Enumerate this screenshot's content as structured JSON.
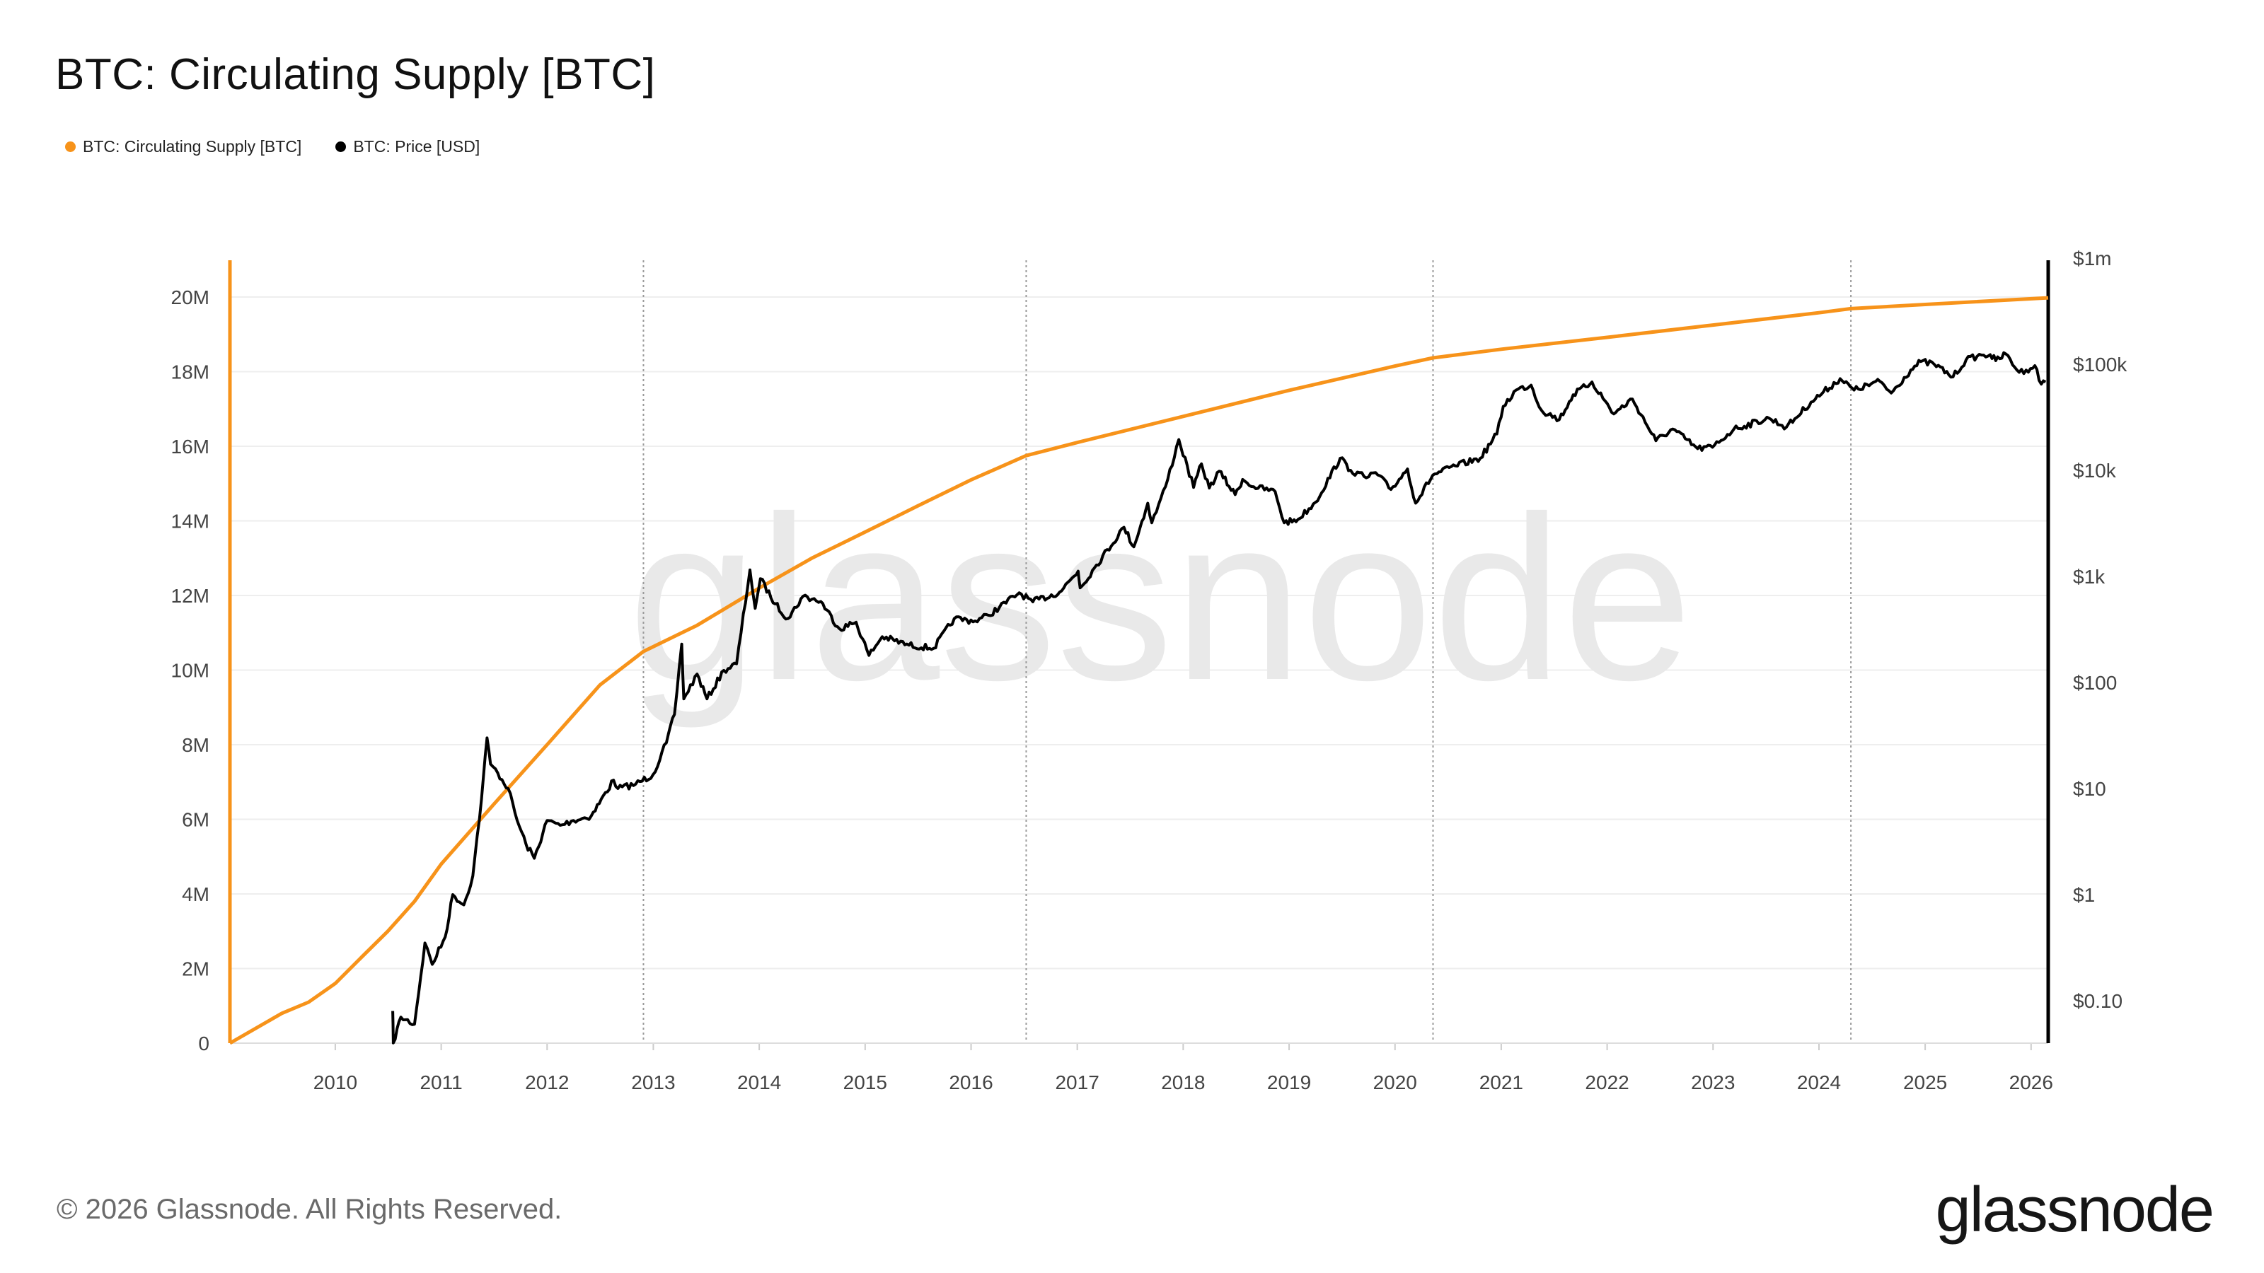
{
  "page": {
    "title": "BTC: Circulating Supply [BTC]",
    "footer": "© 2026 Glassnode. All Rights Reserved.",
    "logo_text": "glassnode",
    "watermark_text": "glassnode"
  },
  "colors": {
    "supply": "#f7931a",
    "price": "#000000",
    "grid": "#eeeeee",
    "axis_text": "#444444"
  },
  "chart_data": {
    "type": "line",
    "title": "BTC: Circulating Supply [BTC]",
    "legend_position": "top-left",
    "grid": true,
    "xlim": [
      "2009-01-03",
      "2026-03-01"
    ],
    "x_ticks": [
      "2010",
      "2011",
      "2012",
      "2013",
      "2014",
      "2015",
      "2016",
      "2017",
      "2018",
      "2019",
      "2020",
      "2021",
      "2022",
      "2023",
      "2024",
      "2025",
      "2026"
    ],
    "y_left": {
      "label": "",
      "range": [
        0,
        21000000
      ],
      "ticks": [
        0,
        2000000,
        4000000,
        6000000,
        8000000,
        10000000,
        12000000,
        14000000,
        16000000,
        18000000,
        20000000
      ],
      "tick_labels": [
        "0",
        "2M",
        "4M",
        "6M",
        "8M",
        "10M",
        "12M",
        "14M",
        "16M",
        "18M",
        "20M"
      ]
    },
    "y_right": {
      "label": "",
      "scale": "log",
      "range": [
        0.03,
        1000000
      ],
      "ticks": [
        0.1,
        1,
        10,
        100,
        1000,
        10000,
        100000,
        1000000
      ],
      "tick_labels": [
        "$0.10",
        "$1",
        "$10",
        "$100",
        "$1k",
        "$10k",
        "$100k",
        "$1m"
      ]
    },
    "halving_dates": [
      "2012-11-28",
      "2016-07-09",
      "2020-05-11",
      "2024-04-20"
    ],
    "series": [
      {
        "name": "BTC: Circulating Supply [BTC]",
        "axis": "left",
        "color": "#f7931a",
        "points": [
          [
            "2009-01-03",
            0
          ],
          [
            "2009-07-01",
            800000
          ],
          [
            "2009-10-01",
            1100000
          ],
          [
            "2010-01-01",
            1600000
          ],
          [
            "2010-04-01",
            2300000
          ],
          [
            "2010-07-01",
            3000000
          ],
          [
            "2010-10-01",
            3800000
          ],
          [
            "2011-01-01",
            4800000
          ],
          [
            "2011-07-01",
            6400000
          ],
          [
            "2012-01-01",
            8000000
          ],
          [
            "2012-07-01",
            9600000
          ],
          [
            "2012-11-28",
            10500000
          ],
          [
            "2013-06-01",
            11200000
          ],
          [
            "2014-01-01",
            12200000
          ],
          [
            "2014-07-01",
            13000000
          ],
          [
            "2015-01-01",
            13700000
          ],
          [
            "2015-07-01",
            14400000
          ],
          [
            "2016-01-01",
            15100000
          ],
          [
            "2016-07-09",
            15750000
          ],
          [
            "2017-01-01",
            16100000
          ],
          [
            "2018-01-01",
            16800000
          ],
          [
            "2019-01-01",
            17500000
          ],
          [
            "2020-01-01",
            18150000
          ],
          [
            "2020-05-11",
            18370000
          ],
          [
            "2021-01-01",
            18600000
          ],
          [
            "2022-01-01",
            18920000
          ],
          [
            "2023-01-01",
            19250000
          ],
          [
            "2024-01-01",
            19580000
          ],
          [
            "2024-04-20",
            19690000
          ],
          [
            "2025-01-01",
            19800000
          ],
          [
            "2026-03-01",
            19980000
          ]
        ]
      },
      {
        "name": "BTC: Price [USD]",
        "axis": "right",
        "color": "#000000",
        "points": [
          [
            "2010-07-18",
            0.08
          ],
          [
            "2010-07-20",
            0.04
          ],
          [
            "2010-08-15",
            0.07
          ],
          [
            "2010-10-01",
            0.06
          ],
          [
            "2010-11-06",
            0.35
          ],
          [
            "2010-12-01",
            0.22
          ],
          [
            "2011-01-15",
            0.4
          ],
          [
            "2011-02-10",
            1.0
          ],
          [
            "2011-03-20",
            0.8
          ],
          [
            "2011-04-20",
            1.5
          ],
          [
            "2011-05-20",
            8
          ],
          [
            "2011-06-08",
            30
          ],
          [
            "2011-06-20",
            17
          ],
          [
            "2011-07-15",
            14
          ],
          [
            "2011-08-20",
            10
          ],
          [
            "2011-09-20",
            5
          ],
          [
            "2011-10-20",
            3
          ],
          [
            "2011-11-18",
            2.2
          ],
          [
            "2012-01-01",
            5
          ],
          [
            "2012-02-15",
            4.5
          ],
          [
            "2012-04-01",
            5
          ],
          [
            "2012-06-01",
            5.5
          ],
          [
            "2012-08-17",
            12
          ],
          [
            "2012-09-01",
            10
          ],
          [
            "2012-11-01",
            11
          ],
          [
            "2012-12-31",
            13.5
          ],
          [
            "2013-02-15",
            27
          ],
          [
            "2013-03-15",
            50
          ],
          [
            "2013-04-09",
            230
          ],
          [
            "2013-04-16",
            70
          ],
          [
            "2013-06-01",
            120
          ],
          [
            "2013-07-05",
            70
          ],
          [
            "2013-09-01",
            130
          ],
          [
            "2013-10-15",
            150
          ],
          [
            "2013-11-30",
            1150
          ],
          [
            "2013-12-18",
            500
          ],
          [
            "2014-01-05",
            950
          ],
          [
            "2014-02-25",
            550
          ],
          [
            "2014-04-10",
            400
          ],
          [
            "2014-06-01",
            650
          ],
          [
            "2014-08-01",
            580
          ],
          [
            "2014-10-05",
            320
          ],
          [
            "2014-12-01",
            370
          ],
          [
            "2015-01-14",
            180
          ],
          [
            "2015-03-01",
            270
          ],
          [
            "2015-06-01",
            225
          ],
          [
            "2015-08-25",
            210
          ],
          [
            "2015-11-04",
            400
          ],
          [
            "2016-01-15",
            380
          ],
          [
            "2016-03-01",
            430
          ],
          [
            "2016-06-15",
            700
          ],
          [
            "2016-08-01",
            575
          ],
          [
            "2016-11-01",
            710
          ],
          [
            "2017-01-04",
            1120
          ],
          [
            "2017-01-11",
            780
          ],
          [
            "2017-03-01",
            1200
          ],
          [
            "2017-06-11",
            2900
          ],
          [
            "2017-07-15",
            1900
          ],
          [
            "2017-09-01",
            4900
          ],
          [
            "2017-09-15",
            3200
          ],
          [
            "2017-11-01",
            7000
          ],
          [
            "2017-12-17",
            19500
          ],
          [
            "2018-02-06",
            6900
          ],
          [
            "2018-03-05",
            11500
          ],
          [
            "2018-04-01",
            6800
          ],
          [
            "2018-05-05",
            9800
          ],
          [
            "2018-06-29",
            5900
          ],
          [
            "2018-07-25",
            8200
          ],
          [
            "2018-09-01",
            7000
          ],
          [
            "2018-11-14",
            6300
          ],
          [
            "2018-12-15",
            3200
          ],
          [
            "2019-02-01",
            3450
          ],
          [
            "2019-04-02",
            5000
          ],
          [
            "2019-06-26",
            13000
          ],
          [
            "2019-08-01",
            10000
          ],
          [
            "2019-09-24",
            8500
          ],
          [
            "2019-10-26",
            9500
          ],
          [
            "2019-12-18",
            6600
          ],
          [
            "2020-02-13",
            10300
          ],
          [
            "2020-03-12",
            4900
          ],
          [
            "2020-05-10",
            9000
          ],
          [
            "2020-07-27",
            11000
          ],
          [
            "2020-10-21",
            13000
          ],
          [
            "2020-12-17",
            22000
          ],
          [
            "2021-01-08",
            40000
          ],
          [
            "2021-02-21",
            57000
          ],
          [
            "2021-04-14",
            63500
          ],
          [
            "2021-05-19",
            37000
          ],
          [
            "2021-07-20",
            30000
          ],
          [
            "2021-09-06",
            51500
          ],
          [
            "2021-11-10",
            68000
          ],
          [
            "2022-01-24",
            34000
          ],
          [
            "2022-03-29",
            47000
          ],
          [
            "2022-06-18",
            19000
          ],
          [
            "2022-08-15",
            24500
          ],
          [
            "2022-11-09",
            16000
          ],
          [
            "2022-12-30",
            16500
          ],
          [
            "2023-03-14",
            24500
          ],
          [
            "2023-07-13",
            31000
          ],
          [
            "2023-09-11",
            25500
          ],
          [
            "2023-12-05",
            44000
          ],
          [
            "2024-03-14",
            73000
          ],
          [
            "2024-05-01",
            57000
          ],
          [
            "2024-07-29",
            69000
          ],
          [
            "2024-09-06",
            53500
          ],
          [
            "2024-11-12",
            88000
          ],
          [
            "2024-12-17",
            106000
          ],
          [
            "2025-02-01",
            100000
          ],
          [
            "2025-04-07",
            76000
          ],
          [
            "2025-05-22",
            110000
          ],
          [
            "2025-07-14",
            122000
          ],
          [
            "2025-08-13",
            123000
          ],
          [
            "2025-09-01",
            108000
          ],
          [
            "2025-10-06",
            125000
          ],
          [
            "2025-11-21",
            84000
          ],
          [
            "2025-12-15",
            88000
          ],
          [
            "2026-01-14",
            97000
          ],
          [
            "2026-02-05",
            65000
          ],
          [
            "2026-02-20",
            68000
          ]
        ]
      }
    ]
  }
}
